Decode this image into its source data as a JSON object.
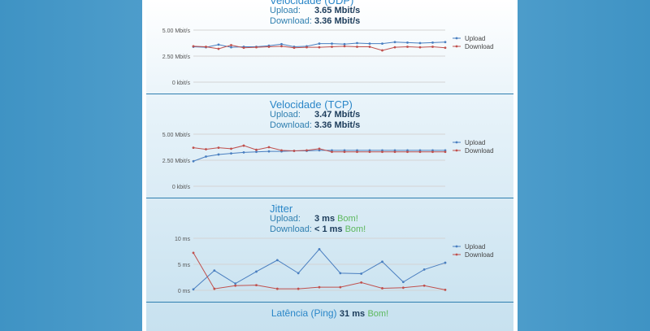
{
  "udp": {
    "title": "Velocidade (UDP)",
    "upload_label": "Upload:",
    "upload_value": "3.65 Mbit/s",
    "download_label": "Download:",
    "download_value": "3.36 Mbit/s"
  },
  "tcp": {
    "title": "Velocidade (TCP)",
    "upload_label": "Upload:",
    "upload_value": "3.47 Mbit/s",
    "download_label": "Download:",
    "download_value": "3.36 Mbit/s"
  },
  "jitter": {
    "title": "Jitter",
    "upload_label": "Upload:",
    "upload_value": "3 ms",
    "upload_rating": "Bom!",
    "download_label": "Download:",
    "download_value": "< 1 ms",
    "download_rating": "Bom!"
  },
  "ping": {
    "title": "Latência (Ping)",
    "value": "31 ms",
    "rating": "Bom!"
  },
  "colors": {
    "upload": "#4a7fc0",
    "download": "#c0504d",
    "accent": "#2a86c8",
    "good": "#5cb85c"
  },
  "chart_data": [
    {
      "type": "line",
      "ytick_labels": [
        "5.00 Mbit/s",
        "2.50 Mbit/s",
        "0 kbit/s"
      ],
      "yticks": [
        5,
        2.5,
        0
      ],
      "ylim": [
        0,
        5
      ],
      "grid": true,
      "legend_position": "right",
      "series": [
        {
          "name": "Upload",
          "values": [
            3.4,
            3.35,
            3.6,
            3.35,
            3.4,
            3.4,
            3.5,
            3.65,
            3.4,
            3.45,
            3.7,
            3.7,
            3.65,
            3.75,
            3.7,
            3.7,
            3.85,
            3.8,
            3.75,
            3.8,
            3.85
          ]
        },
        {
          "name": "Download",
          "values": [
            3.45,
            3.4,
            3.2,
            3.55,
            3.3,
            3.35,
            3.4,
            3.45,
            3.3,
            3.35,
            3.35,
            3.4,
            3.45,
            3.4,
            3.4,
            3.05,
            3.35,
            3.4,
            3.35,
            3.4,
            3.3
          ]
        }
      ]
    },
    {
      "type": "line",
      "ytick_labels": [
        "5.00 Mbit/s",
        "2.50 Mbit/s",
        "0 kbit/s"
      ],
      "yticks": [
        5,
        2.5,
        0
      ],
      "ylim": [
        0,
        5
      ],
      "grid": true,
      "legend_position": "right",
      "series": [
        {
          "name": "Upload",
          "values": [
            2.4,
            2.85,
            3.05,
            3.15,
            3.25,
            3.3,
            3.35,
            3.35,
            3.4,
            3.4,
            3.45,
            3.45,
            3.45,
            3.45,
            3.45,
            3.45,
            3.45,
            3.45,
            3.45,
            3.45,
            3.45
          ]
        },
        {
          "name": "Download",
          "values": [
            3.7,
            3.55,
            3.7,
            3.6,
            3.9,
            3.5,
            3.75,
            3.45,
            3.4,
            3.45,
            3.6,
            3.3,
            3.3,
            3.3,
            3.3,
            3.3,
            3.3,
            3.3,
            3.3,
            3.3,
            3.3
          ]
        }
      ]
    },
    {
      "type": "line",
      "ytick_labels": [
        "10 ms",
        "5 ms",
        "0 ms"
      ],
      "yticks": [
        10,
        5,
        0
      ],
      "ylim": [
        0,
        10
      ],
      "grid": true,
      "legend_position": "right",
      "series": [
        {
          "name": "Upload",
          "values": [
            0.2,
            3.8,
            1.3,
            3.6,
            5.8,
            3.3,
            7.9,
            3.3,
            3.2,
            5.5,
            1.6,
            4.0,
            5.3
          ]
        },
        {
          "name": "Download",
          "values": [
            7.2,
            0.3,
            0.9,
            1.0,
            0.3,
            0.3,
            0.6,
            0.6,
            1.5,
            0.4,
            0.5,
            0.9,
            0.1
          ]
        }
      ]
    }
  ]
}
